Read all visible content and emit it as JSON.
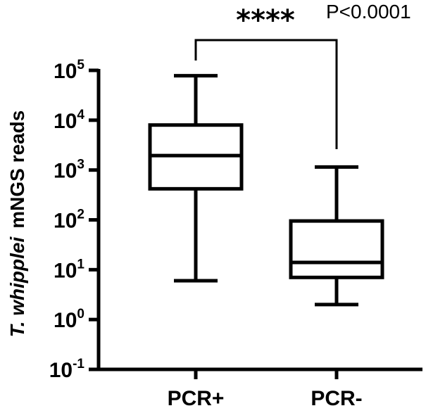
{
  "chart_data": {
    "type": "box",
    "yscale": "log",
    "ylabel_italic": "T. whipplei",
    "ylabel_rest": "mNGS reads",
    "yticks": [
      {
        "base": "10",
        "exp": "5",
        "value": 100000
      },
      {
        "base": "10",
        "exp": "4",
        "value": 10000
      },
      {
        "base": "10",
        "exp": "3",
        "value": 1000
      },
      {
        "base": "10",
        "exp": "2",
        "value": 100
      },
      {
        "base": "10",
        "exp": "1",
        "value": 10
      },
      {
        "base": "10",
        "exp": "0",
        "value": 1
      },
      {
        "base": "10",
        "exp": "-1",
        "value": 0.1
      }
    ],
    "ylim": [
      0.1,
      100000
    ],
    "categories": [
      "PCR+",
      "PCR-"
    ],
    "boxes": [
      {
        "label": "PCR+",
        "min": 6,
        "q1": 420,
        "median": 1950,
        "q3": 8000,
        "max": 78000
      },
      {
        "label": "PCR-",
        "min": 2,
        "q1": 7,
        "median": 14,
        "q3": 95,
        "max": 1150
      }
    ],
    "significance": {
      "stars": "****",
      "p_label": "P<0.0001"
    }
  }
}
